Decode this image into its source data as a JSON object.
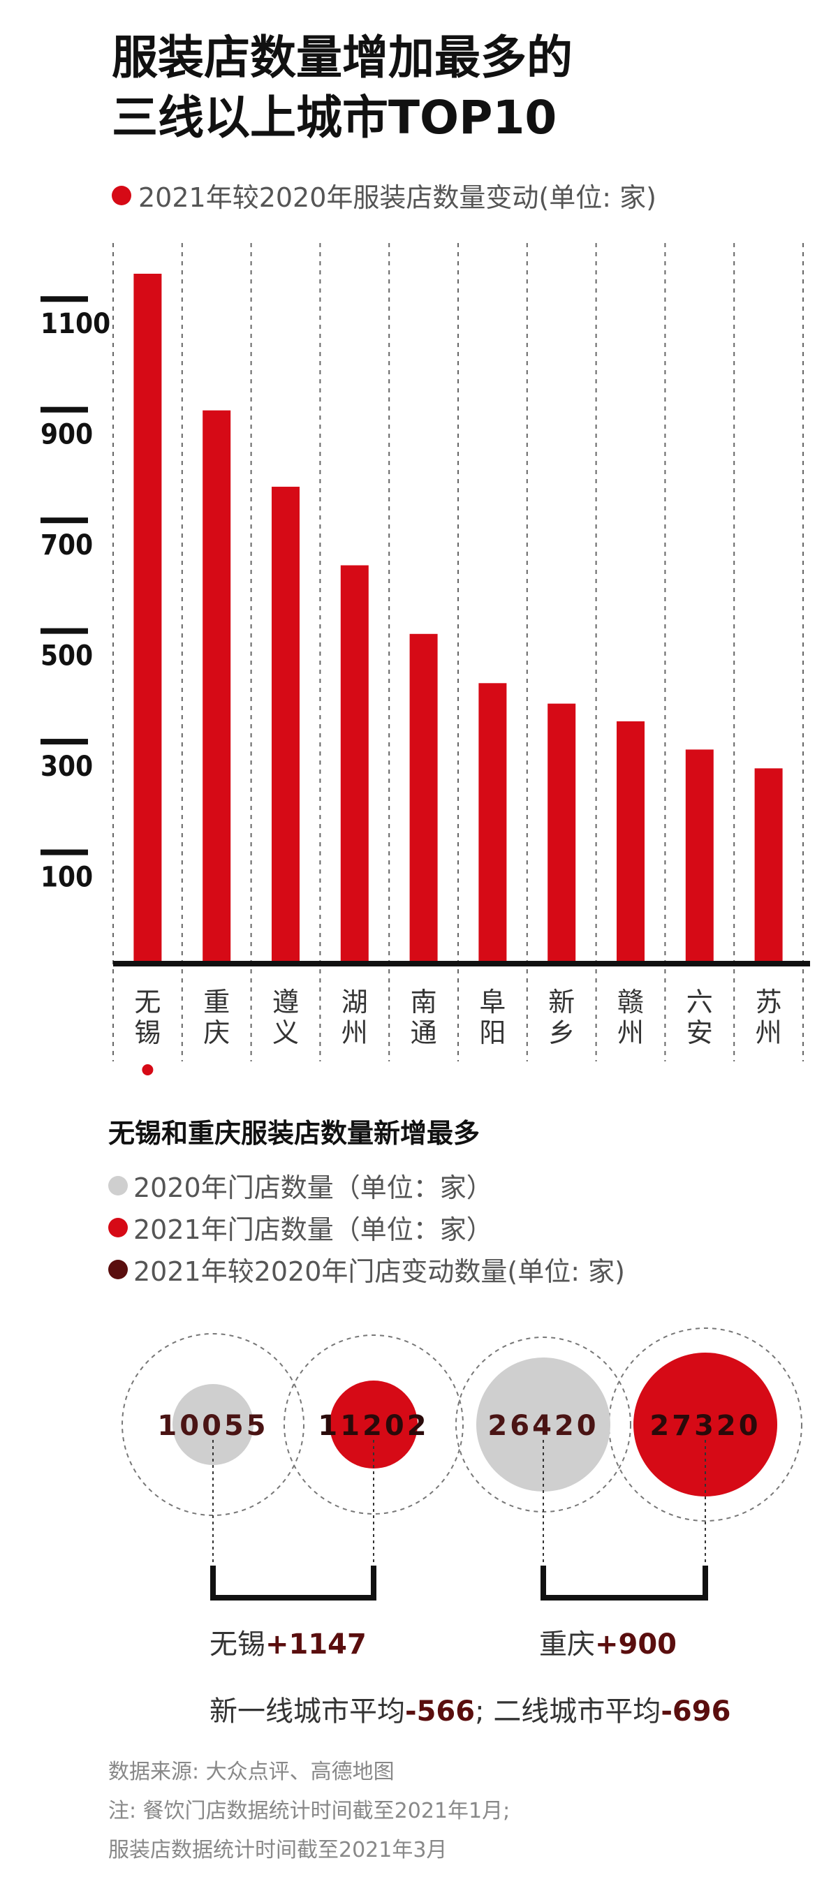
{
  "title": {
    "line1": "服装店数量增加最多的",
    "line2": "三线以上城市TOP10"
  },
  "legend_top": "2021年较2020年服装店数量变动(单位: 家)",
  "chart_data": [
    {
      "type": "bar",
      "categories": [
        "无锡",
        "重庆",
        "遵义",
        "湖州",
        "南通",
        "阜阳",
        "新乡",
        "赣州",
        "六安",
        "苏州"
      ],
      "category_labels": [
        [
          "无",
          "锡"
        ],
        [
          "重",
          "庆"
        ],
        [
          "遵",
          "义"
        ],
        [
          "湖",
          "州"
        ],
        [
          "南",
          "通"
        ],
        [
          "阜",
          "阳"
        ],
        [
          "新",
          "乡"
        ],
        [
          "赣",
          "州"
        ],
        [
          "六",
          "安"
        ],
        [
          "苏",
          "州"
        ]
      ],
      "values": [
        1147,
        900,
        762,
        620,
        496,
        407,
        370,
        338,
        287,
        253
      ],
      "yticks": [
        "1100",
        "900",
        "700",
        "500",
        "300",
        "100"
      ],
      "ytick_values": [
        1100,
        900,
        700,
        500,
        300,
        100
      ],
      "ylim": [
        -100,
        1200
      ],
      "highlight_index": 0,
      "grid": "vertical dashed separators",
      "legend": "2021年较2020年服装店数量变动(单位: 家)"
    },
    {
      "type": "bubble",
      "title": "无锡和重庆服装店数量新增最多",
      "series": [
        {
          "name": "2020年门店数量（单位：家）",
          "values": [
            10055,
            26420
          ]
        },
        {
          "name": "2021年门店数量（单位：家）",
          "values": [
            11202,
            27320
          ]
        },
        {
          "name": "2021年较2020年门店变动数量(单位: 家)",
          "values": [
            1147,
            900
          ]
        }
      ],
      "categories": [
        "无锡",
        "重庆"
      ]
    }
  ],
  "section2": {
    "title": "无锡和重庆服装店数量新增最多",
    "legend": [
      {
        "label": "2020年门店数量（单位：家）",
        "color": "#cfcfcf"
      },
      {
        "label": "2021年门店数量（单位：家）",
        "color": "#d60a16"
      },
      {
        "label": "2021年较2020年门店变动数量(单位: 家)",
        "color": "#5a0e0e"
      }
    ],
    "bubbles": [
      {
        "label": "10055",
        "kind": "2020"
      },
      {
        "label": "11202",
        "kind": "2021"
      },
      {
        "label": "26420",
        "kind": "2020"
      },
      {
        "label": "27320",
        "kind": "2021"
      }
    ],
    "brackets": [
      {
        "city": "无锡",
        "change": "+1147"
      },
      {
        "city": "重庆",
        "change": "+900"
      }
    ],
    "averages": {
      "t1_label": "新一线城市平均",
      "t1_value": "-566",
      "sep": "; ",
      "t2_label": "二线城市平均",
      "t2_value": "-696"
    }
  },
  "source": {
    "line1": "数据来源: 大众点评、高德地图",
    "line2": "注: 餐饮门店数据统计时间截至2021年1月;",
    "line3": "服装店数据统计时间截至2021年3月"
  },
  "colors": {
    "red": "#d60a16",
    "grey": "#cfcfcf",
    "dark": "#5a0e0e",
    "axis": "#111111"
  }
}
